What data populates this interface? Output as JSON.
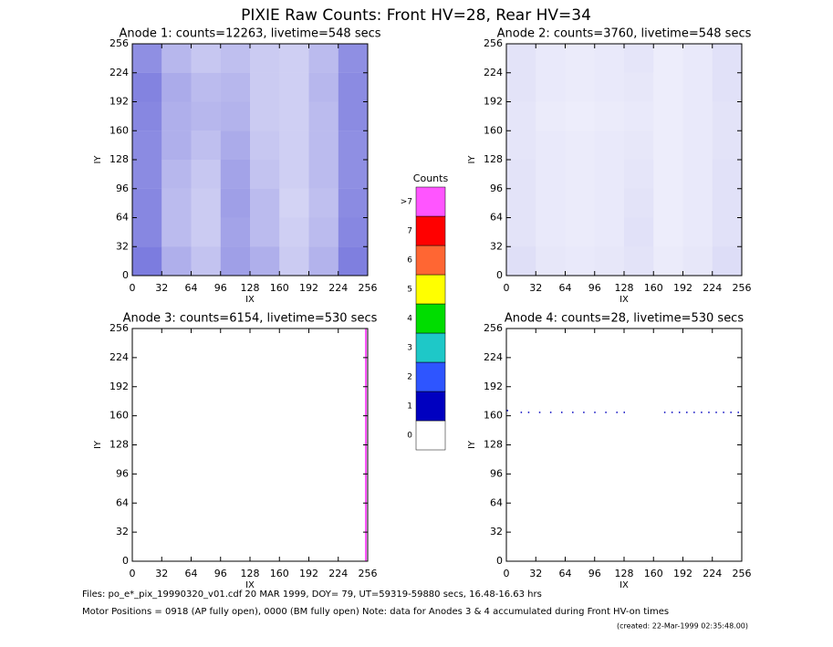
{
  "page": {
    "title": "PIXIE Raw Counts:  Front HV=28, Rear HV=34"
  },
  "chart_data": [
    {
      "type": "heatmap",
      "title": "Anode 1: counts=12263, livetime=548 secs",
      "xlabel": "IX",
      "ylabel": "IY",
      "xlim": [
        0,
        256
      ],
      "ylim": [
        0,
        256
      ],
      "xticks": [
        0,
        32,
        64,
        96,
        128,
        160,
        192,
        224,
        256
      ],
      "yticks": [
        0,
        32,
        64,
        96,
        128,
        160,
        192,
        224,
        256
      ],
      "color": "#0000c0",
      "cells": [
        [
          330,
          200,
          150,
          240,
          200,
          130,
          190,
          320
        ],
        [
          300,
          170,
          130,
          230,
          170,
          120,
          170,
          300
        ],
        [
          300,
          170,
          130,
          240,
          170,
          110,
          160,
          290
        ],
        [
          290,
          180,
          140,
          230,
          150,
          120,
          170,
          280
        ],
        [
          290,
          200,
          160,
          210,
          140,
          120,
          170,
          280
        ],
        [
          300,
          200,
          180,
          190,
          130,
          120,
          170,
          290
        ],
        [
          310,
          210,
          170,
          180,
          130,
          120,
          180,
          290
        ],
        [
          280,
          180,
          140,
          160,
          130,
          120,
          170,
          280
        ]
      ]
    },
    {
      "type": "heatmap",
      "title": "Anode 2: counts=3760, livetime=548 secs",
      "xlabel": "IX",
      "ylabel": "IY",
      "xlim": [
        0,
        256
      ],
      "ylim": [
        0,
        256
      ],
      "xticks": [
        0,
        32,
        64,
        96,
        128,
        160,
        192,
        224,
        256
      ],
      "yticks": [
        0,
        32,
        64,
        96,
        128,
        160,
        192,
        224,
        256
      ],
      "color": "#0000c0",
      "cells": [
        [
          80,
          60,
          55,
          60,
          70,
          50,
          60,
          85
        ],
        [
          70,
          55,
          50,
          55,
          75,
          45,
          55,
          75
        ],
        [
          70,
          55,
          50,
          55,
          70,
          45,
          55,
          75
        ],
        [
          70,
          55,
          50,
          55,
          65,
          45,
          55,
          75
        ],
        [
          65,
          55,
          50,
          55,
          60,
          45,
          55,
          70
        ],
        [
          65,
          50,
          45,
          50,
          55,
          45,
          55,
          70
        ],
        [
          70,
          55,
          50,
          55,
          60,
          45,
          55,
          75
        ],
        [
          70,
          55,
          50,
          55,
          65,
          45,
          55,
          75
        ]
      ]
    },
    {
      "type": "column",
      "title": "Anode 3: counts=6154, livetime=530 secs",
      "xlabel": "IX",
      "ylabel": "IY",
      "xlim": [
        0,
        256
      ],
      "ylim": [
        0,
        256
      ],
      "xticks": [
        0,
        32,
        64,
        96,
        128,
        160,
        192,
        224,
        256
      ],
      "yticks": [
        0,
        32,
        64,
        96,
        128,
        160,
        192,
        224,
        256
      ],
      "color": "#ff55ff",
      "x": 254
    },
    {
      "type": "scatter",
      "title": "Anode 4: counts=28, livetime=530 secs",
      "xlabel": "IX",
      "ylabel": "IY",
      "xlim": [
        0,
        256
      ],
      "ylim": [
        0,
        256
      ],
      "xticks": [
        0,
        32,
        64,
        96,
        128,
        160,
        192,
        224,
        256
      ],
      "yticks": [
        0,
        32,
        64,
        96,
        128,
        160,
        192,
        224,
        256
      ],
      "color": "#0000c0",
      "x": [
        1,
        16,
        24,
        36,
        48,
        60,
        72,
        84,
        96,
        108,
        120,
        128,
        172,
        180,
        188,
        196,
        204,
        212,
        220,
        228,
        236,
        244,
        252
      ],
      "y": [
        166,
        164,
        164,
        164,
        164,
        164,
        164,
        164,
        164,
        164,
        164,
        164,
        164,
        164,
        164,
        164,
        164,
        164,
        164,
        164,
        164,
        164,
        164
      ]
    }
  ],
  "colorbar": {
    "title": "Counts",
    "labels": [
      "0",
      "1",
      "2",
      "3",
      "4",
      "5",
      "6",
      "7",
      ">7"
    ],
    "colors": [
      "#ffffff",
      "#0000c0",
      "#2e55ff",
      "#1ec8c8",
      "#00dd00",
      "#ffff00",
      "#ff6633",
      "#ff0000",
      "#ff55ff"
    ]
  },
  "footer": {
    "line1": "Files: po_e*_pix_19990320_v01.cdf    20 MAR 1999, DOY= 79, UT=59319-59880 secs, 16.48-16.63 hrs",
    "line2": "Motor Positions = 0918 (AP fully open), 0000 (BM fully open)    Note: data for Anodes 3 & 4 accumulated during Front HV-on times",
    "created": "(created: 22-Mar-1999 02:35:48.00)"
  }
}
